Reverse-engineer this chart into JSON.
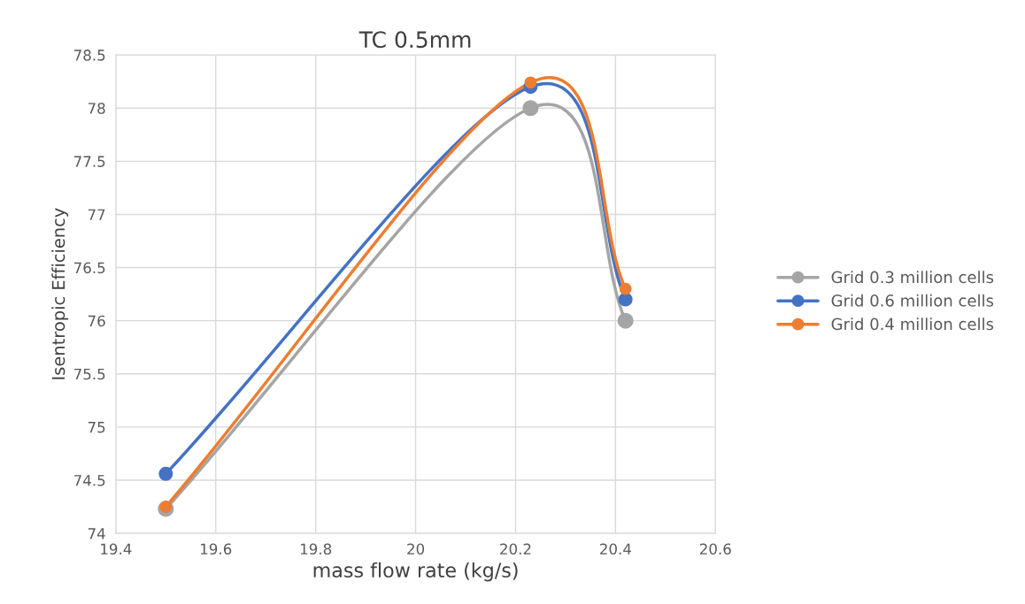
{
  "chart_data": {
    "type": "line",
    "title": "TC 0.5mm",
    "xlabel": "mass flow rate (kg/s)",
    "ylabel": "Isentropic Efficiency",
    "x": [
      19.5,
      20.23,
      20.42
    ],
    "series": [
      {
        "name": "Grid 0.3 million cells",
        "color": "#a5a5a5",
        "values": [
          74.23,
          78.0,
          76.0
        ]
      },
      {
        "name": "Grid 0.6 million cells",
        "color": "#4472c4",
        "values": [
          74.56,
          78.2,
          76.2
        ]
      },
      {
        "name": "Grid 0.4 million cells",
        "color": "#ed7d31",
        "values": [
          74.25,
          78.24,
          76.3
        ]
      }
    ],
    "xlim": [
      19.4,
      20.6
    ],
    "xticks": [
      19.4,
      19.6,
      19.8,
      20,
      20.2,
      20.4,
      20.6
    ],
    "ylim": [
      74,
      78.5
    ],
    "yticks": [
      74,
      74.5,
      75,
      75.5,
      76,
      76.5,
      77,
      77.5,
      78,
      78.5
    ],
    "grid": true,
    "legend": "right",
    "marker": "circle",
    "line_style": "solid"
  }
}
